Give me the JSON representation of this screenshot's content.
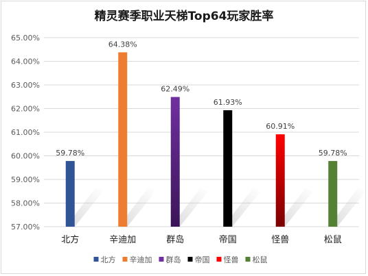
{
  "chart_data": {
    "type": "bar",
    "title": "精灵赛季职业天梯Top64玩家胜率",
    "xlabel": "",
    "ylabel": "",
    "categories": [
      "北方",
      "辛迪加",
      "群岛",
      "帝国",
      "怪兽",
      "松鼠"
    ],
    "values": [
      59.78,
      64.38,
      62.49,
      61.93,
      60.91,
      59.78
    ],
    "data_labels": [
      "59.78%",
      "64.38%",
      "62.49%",
      "61.93%",
      "60.91%",
      "59.78%"
    ],
    "ylim": [
      57.0,
      65.0
    ],
    "yticks": [
      57,
      58,
      59,
      60,
      61,
      62,
      63,
      64,
      65
    ],
    "ytick_labels": [
      "57.00%",
      "58.00%",
      "59.00%",
      "60.00%",
      "61.00%",
      "62.00%",
      "63.00%",
      "64.00%",
      "65.00%"
    ],
    "colors": [
      {
        "top": "#2f5597",
        "bottom": "#2f5597"
      },
      {
        "top": "#ed7d31",
        "bottom": "#ed7d31"
      },
      {
        "top": "#7030a0",
        "bottom": "#3a1558"
      },
      {
        "top": "#000000",
        "bottom": "#000000"
      },
      {
        "top": "#ff0000",
        "bottom": "#7a0000"
      },
      {
        "top": "#548235",
        "bottom": "#548235"
      }
    ],
    "grid": true,
    "legend_position": "bottom"
  }
}
